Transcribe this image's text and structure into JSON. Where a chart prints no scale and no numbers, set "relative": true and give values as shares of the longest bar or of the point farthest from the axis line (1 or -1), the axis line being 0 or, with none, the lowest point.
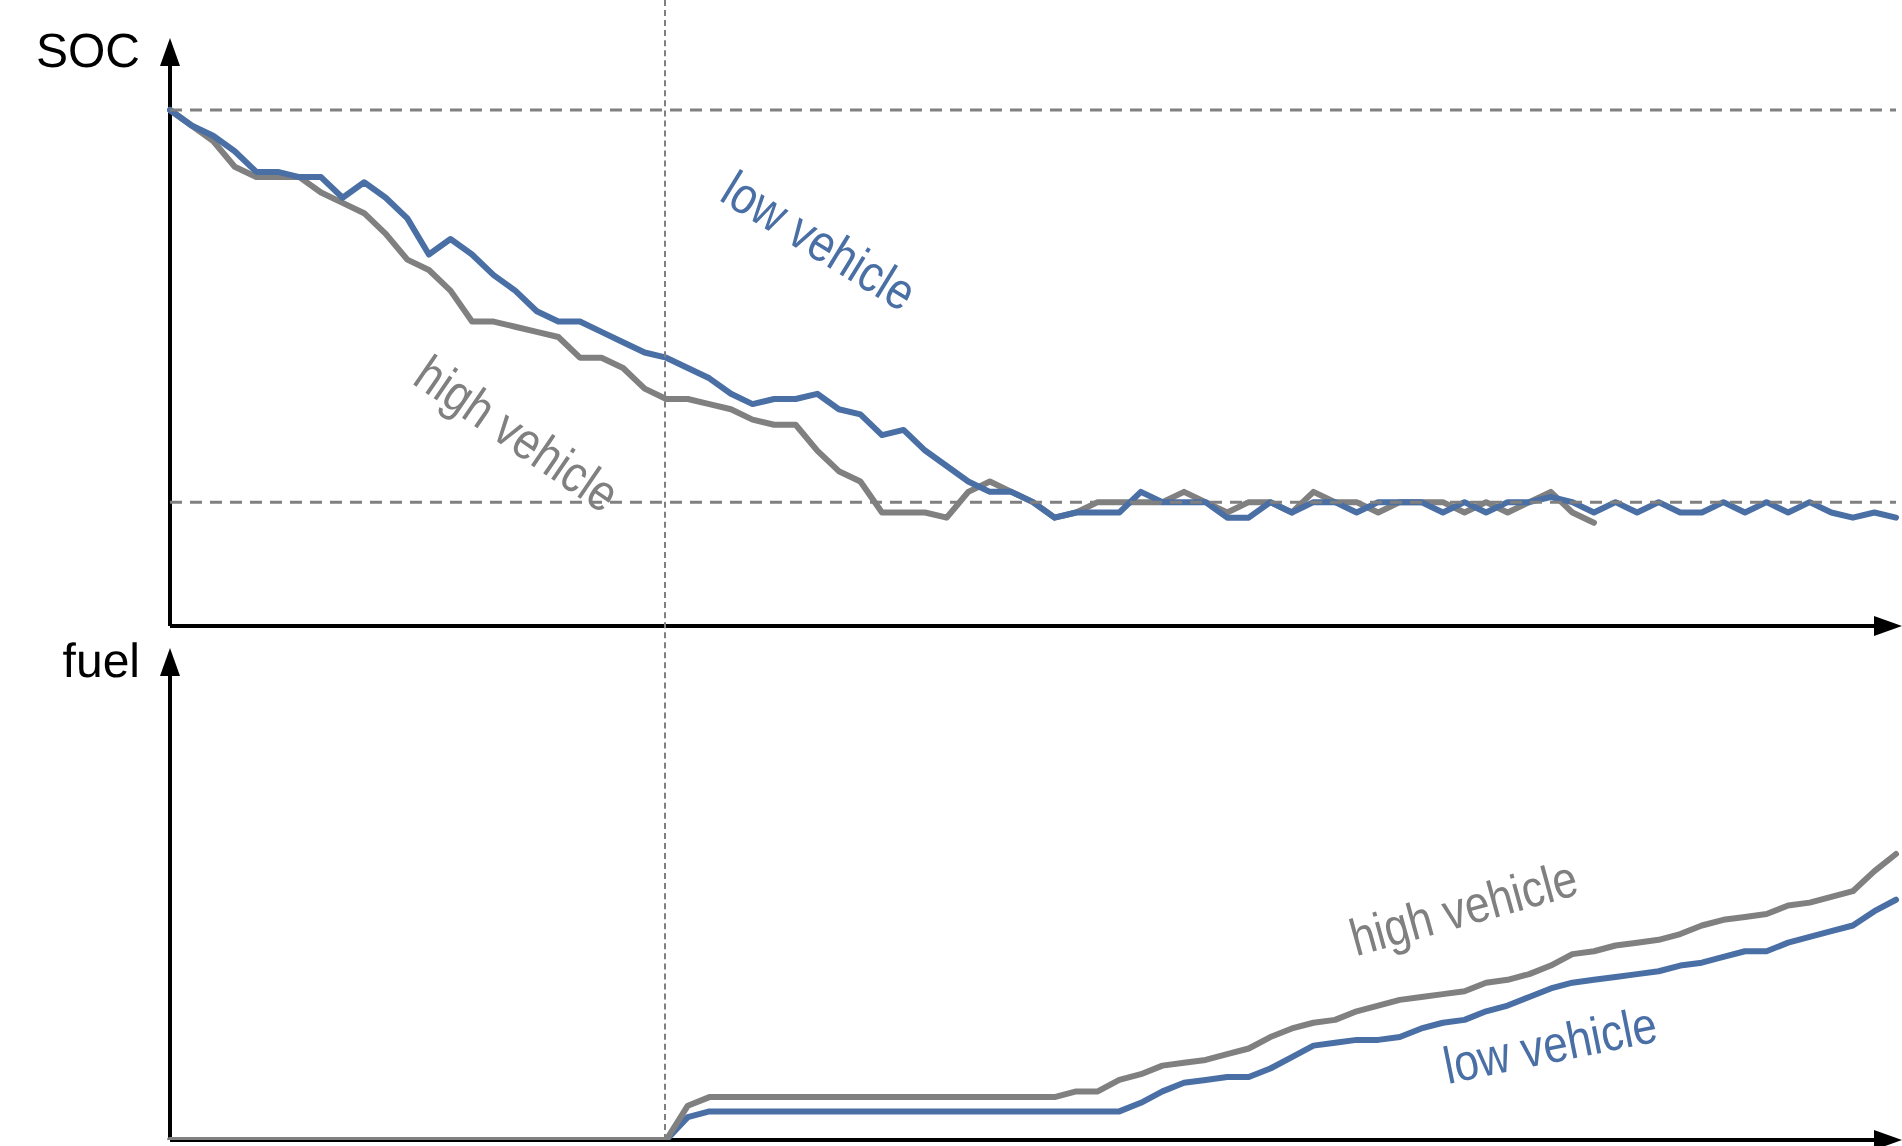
{
  "chart_data": [
    {
      "type": "line",
      "ylabel": "SOC",
      "relative": true,
      "legend": false,
      "grid": false,
      "marker": "none",
      "line_style": "solid",
      "tick_labels": false,
      "categories": [
        null,
        null,
        null,
        null,
        null,
        null,
        null,
        null,
        null,
        null,
        null,
        null,
        null,
        null,
        null,
        null,
        null,
        null,
        null,
        null,
        null,
        null,
        null,
        null,
        null,
        null,
        null,
        null,
        null,
        null,
        null,
        null,
        null,
        null,
        null,
        null,
        null,
        null,
        null,
        null,
        null,
        null,
        null,
        null,
        null,
        null,
        null,
        null,
        null,
        null,
        null,
        null,
        null,
        null,
        null,
        null,
        null,
        null,
        null,
        null,
        null,
        null,
        null,
        null,
        null,
        null,
        null,
        null,
        null,
        null,
        null,
        null,
        null,
        null,
        null,
        null,
        null,
        null,
        null,
        null,
        null
      ],
      "series": [
        {
          "name": "low vehicle",
          "color": "#4a6fa5",
          "values": [
            1.0,
            0.97,
            0.95,
            0.92,
            0.88,
            0.88,
            0.87,
            0.87,
            0.83,
            0.86,
            0.83,
            0.79,
            0.72,
            0.75,
            0.72,
            0.68,
            0.65,
            0.61,
            0.59,
            0.59,
            0.57,
            0.55,
            0.53,
            0.52,
            0.5,
            0.48,
            0.45,
            0.43,
            0.44,
            0.44,
            0.45,
            0.42,
            0.41,
            0.37,
            0.38,
            0.34,
            0.31,
            0.28,
            0.26,
            0.26,
            0.24,
            0.21,
            0.22,
            0.22,
            0.22,
            0.26,
            0.24,
            0.24,
            0.24,
            0.21,
            0.21,
            0.24,
            0.22,
            0.24,
            0.24,
            0.22,
            0.24,
            0.24,
            0.24,
            0.22,
            0.24,
            0.22,
            0.24,
            0.24,
            0.25,
            0.24,
            0.22,
            0.24,
            0.22,
            0.24,
            0.22,
            0.22,
            0.24,
            0.22,
            0.24,
            0.22,
            0.24,
            0.22,
            0.21,
            0.22,
            0.21
          ]
        },
        {
          "name": "high vehicle",
          "color": "#808080",
          "values": [
            1.0,
            0.97,
            0.94,
            0.89,
            0.87,
            0.87,
            0.87,
            0.84,
            0.82,
            0.8,
            0.76,
            0.71,
            0.69,
            0.65,
            0.59,
            0.59,
            0.58,
            0.57,
            0.56,
            0.52,
            0.52,
            0.5,
            0.46,
            0.44,
            0.44,
            0.43,
            0.42,
            0.4,
            0.39,
            0.39,
            0.34,
            0.3,
            0.28,
            0.22,
            0.22,
            0.22,
            0.21,
            0.26,
            0.28,
            0.26,
            0.24,
            0.21,
            0.22,
            0.24,
            0.24,
            0.24,
            0.24,
            0.26,
            0.24,
            0.22,
            0.24,
            0.24,
            0.22,
            0.26,
            0.24,
            0.24,
            0.22,
            0.24,
            0.24,
            0.24,
            0.22,
            0.24,
            0.22,
            0.24,
            0.26,
            0.22,
            0.2,
            null,
            null,
            null,
            null,
            null,
            null,
            null,
            null,
            null,
            null,
            null,
            null,
            null,
            null
          ]
        }
      ],
      "ref_lines": [
        {
          "axis": "y",
          "value": 1.0,
          "color": "#808080",
          "line_style": "dashed"
        },
        {
          "axis": "y",
          "value": 0.24,
          "color": "#808080",
          "line_style": "dashed"
        }
      ]
    },
    {
      "type": "line",
      "ylabel": "fuel",
      "relative": true,
      "legend": false,
      "grid": false,
      "marker": "none",
      "line_style": "solid",
      "tick_labels": false,
      "categories": [
        null,
        null,
        null,
        null,
        null,
        null,
        null,
        null,
        null,
        null,
        null,
        null,
        null,
        null,
        null,
        null,
        null,
        null,
        null,
        null,
        null,
        null,
        null,
        null,
        null,
        null,
        null,
        null,
        null,
        null,
        null,
        null,
        null,
        null,
        null,
        null,
        null,
        null,
        null,
        null,
        null,
        null,
        null,
        null,
        null,
        null,
        null,
        null,
        null,
        null,
        null,
        null,
        null,
        null,
        null,
        null,
        null,
        null,
        null,
        null,
        null,
        null,
        null,
        null,
        null,
        null,
        null,
        null,
        null,
        null,
        null,
        null,
        null,
        null,
        null,
        null,
        null,
        null,
        null,
        null,
        null
      ],
      "series": [
        {
          "name": "high vehicle",
          "color": "#808080",
          "values": [
            0,
            0,
            0,
            0,
            0,
            0,
            0,
            0,
            0,
            0,
            0,
            0,
            0,
            0,
            0,
            0,
            0,
            0,
            0,
            0,
            0,
            0,
            0,
            0,
            0.12,
            0.15,
            0.15,
            0.15,
            0.15,
            0.15,
            0.15,
            0.15,
            0.15,
            0.15,
            0.15,
            0.15,
            0.15,
            0.15,
            0.15,
            0.15,
            0.15,
            0.15,
            0.17,
            0.17,
            0.21,
            0.23,
            0.26,
            0.27,
            0.28,
            0.3,
            0.32,
            0.36,
            0.39,
            0.41,
            0.42,
            0.45,
            0.47,
            0.49,
            0.5,
            0.51,
            0.52,
            0.55,
            0.56,
            0.58,
            0.61,
            0.65,
            0.66,
            0.68,
            0.69,
            0.7,
            0.72,
            0.75,
            0.77,
            0.78,
            0.79,
            0.82,
            0.83,
            0.85,
            0.87,
            0.94,
            1.0
          ]
        },
        {
          "name": "low vehicle",
          "color": "#4a6fa5",
          "values": [
            null,
            null,
            null,
            null,
            null,
            null,
            null,
            null,
            null,
            null,
            null,
            null,
            null,
            null,
            null,
            null,
            null,
            null,
            null,
            null,
            null,
            null,
            null,
            0,
            0.08,
            0.1,
            0.1,
            0.1,
            0.1,
            0.1,
            0.1,
            0.1,
            0.1,
            0.1,
            0.1,
            0.1,
            0.1,
            0.1,
            0.1,
            0.1,
            0.1,
            0.1,
            0.1,
            0.1,
            0.1,
            0.13,
            0.17,
            0.2,
            0.21,
            0.22,
            0.22,
            0.25,
            0.29,
            0.33,
            0.34,
            0.35,
            0.35,
            0.36,
            0.39,
            0.41,
            0.42,
            0.45,
            0.47,
            0.5,
            0.53,
            0.55,
            0.56,
            0.57,
            0.58,
            0.59,
            0.61,
            0.62,
            0.64,
            0.66,
            0.66,
            0.69,
            0.71,
            0.73,
            0.75,
            0.8,
            0.84
          ]
        }
      ]
    }
  ]
}
